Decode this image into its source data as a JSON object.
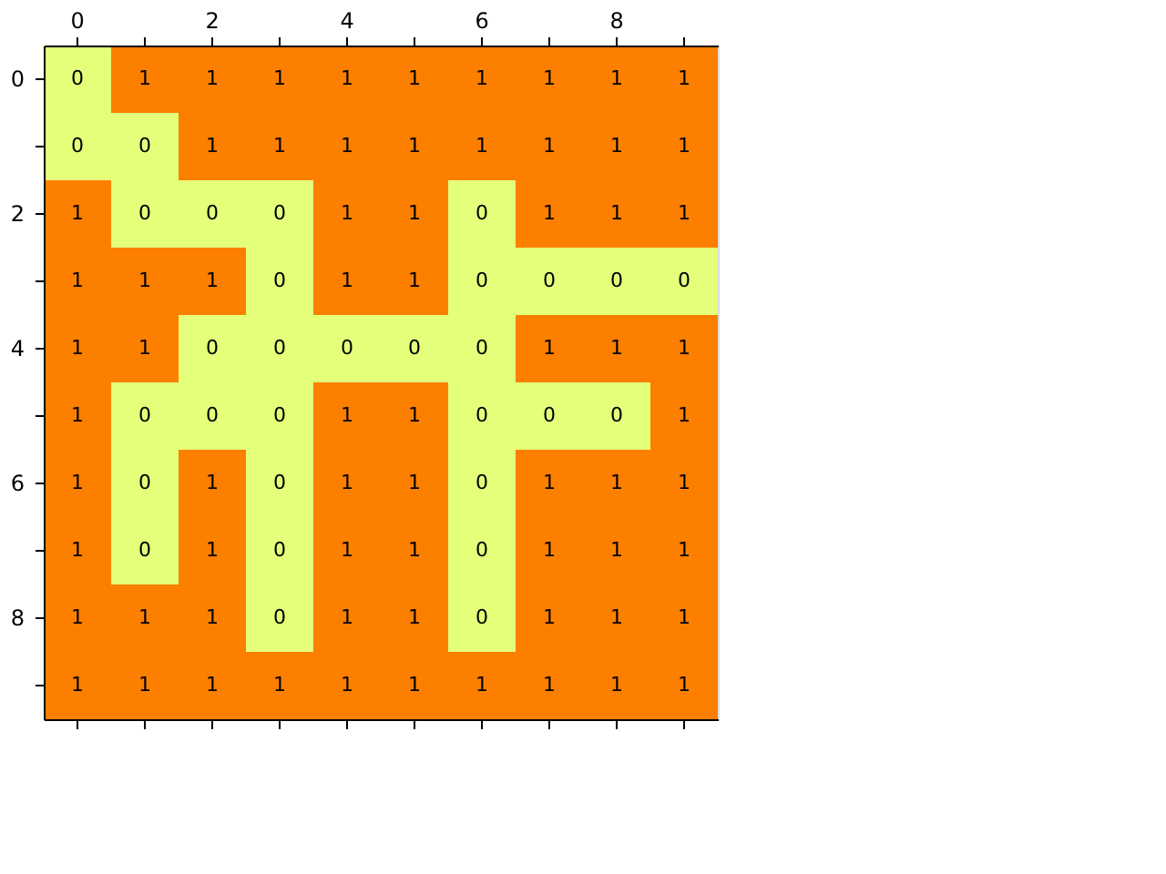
{
  "chart_data": {
    "type": "heatmap",
    "categories": [
      "0",
      null,
      "2",
      null,
      "4",
      null,
      "6",
      null,
      "8",
      null
    ],
    "y_categories": [
      "0",
      null,
      "2",
      null,
      "4",
      null,
      "6",
      null,
      "8",
      null
    ],
    "cells": [
      [
        0,
        1,
        1,
        1,
        1,
        1,
        1,
        1,
        1,
        1
      ],
      [
        0,
        0,
        1,
        1,
        1,
        1,
        1,
        1,
        1,
        1
      ],
      [
        1,
        0,
        0,
        0,
        1,
        1,
        0,
        1,
        1,
        1
      ],
      [
        1,
        1,
        1,
        0,
        1,
        1,
        0,
        0,
        0,
        0
      ],
      [
        1,
        1,
        0,
        0,
        0,
        0,
        0,
        1,
        1,
        1
      ],
      [
        1,
        0,
        0,
        0,
        1,
        1,
        0,
        0,
        0,
        1
      ],
      [
        1,
        0,
        1,
        0,
        1,
        1,
        0,
        1,
        1,
        1
      ],
      [
        1,
        0,
        1,
        0,
        1,
        1,
        0,
        1,
        1,
        1
      ],
      [
        1,
        1,
        1,
        0,
        1,
        1,
        0,
        1,
        1,
        1
      ],
      [
        1,
        1,
        1,
        1,
        1,
        1,
        1,
        1,
        1,
        1
      ]
    ],
    "colors": [
      "#e4ff7a",
      "#fc7f00"
    ],
    "data_labels": true
  }
}
